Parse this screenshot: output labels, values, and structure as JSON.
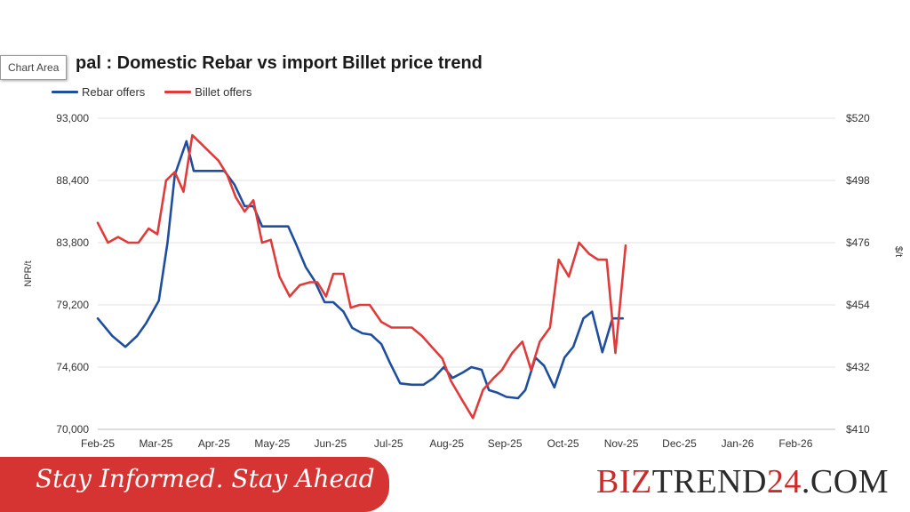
{
  "tooltip": {
    "label": "Chart Area"
  },
  "chart_data": {
    "type": "line",
    "title": "pal : Domestic Rebar vs import Billet price trend",
    "ylabel_left": "NPR/t",
    "ylabel_right": "$/t",
    "ylim_left": [
      70000,
      93000
    ],
    "ylim_right": [
      410,
      520
    ],
    "yticks_left": [
      "93,000",
      "88,400",
      "83,800",
      "79,200",
      "74,600",
      "70,000"
    ],
    "yticks_right": [
      "$520",
      "$498",
      "$476",
      "$454",
      "$432",
      "$410"
    ],
    "xticks": [
      "Feb-25",
      "Mar-25",
      "Apr-25",
      "May-25",
      "Jun-25",
      "Jul-25",
      "Aug-25",
      "Sep-25",
      "Oct-25",
      "Nov-25",
      "Dec-25",
      "Jan-26",
      "Feb-26"
    ],
    "x_range_months": [
      0,
      13.5
    ],
    "grid": true,
    "legend_position": "top-left",
    "series": [
      {
        "name": "Rebar offers",
        "axis": "left",
        "color": "#1f4e9e",
        "points": [
          [
            0,
            78200
          ],
          [
            0.5,
            76900
          ],
          [
            0.95,
            76100
          ],
          [
            1.35,
            76900
          ],
          [
            1.65,
            77800
          ],
          [
            2.1,
            79500
          ],
          [
            2.4,
            83800
          ],
          [
            2.65,
            88800
          ],
          [
            3.05,
            91300
          ],
          [
            3.3,
            89100
          ],
          [
            3.6,
            89100
          ],
          [
            4.0,
            89100
          ],
          [
            4.35,
            89100
          ],
          [
            4.7,
            88100
          ],
          [
            5.05,
            86500
          ],
          [
            5.35,
            86500
          ],
          [
            5.65,
            85000
          ],
          [
            5.95,
            85000
          ],
          [
            6.25,
            85000
          ],
          [
            6.55,
            85000
          ],
          [
            6.8,
            83800
          ],
          [
            7.15,
            82000
          ],
          [
            7.45,
            81000
          ],
          [
            7.8,
            79400
          ],
          [
            8.1,
            79400
          ],
          [
            8.45,
            78700
          ],
          [
            8.75,
            77500
          ],
          [
            9.1,
            77100
          ],
          [
            9.4,
            77000
          ],
          [
            9.75,
            76300
          ],
          [
            10.05,
            74900
          ],
          [
            10.4,
            73400
          ],
          [
            10.8,
            73300
          ],
          [
            11.2,
            73300
          ],
          [
            11.55,
            73800
          ],
          [
            11.9,
            74600
          ],
          [
            12.2,
            73800
          ],
          [
            12.55,
            74200
          ],
          [
            12.85,
            74600
          ],
          [
            13.2,
            74400
          ],
          [
            13.45,
            72900
          ],
          [
            13.75,
            72700
          ],
          [
            14.05,
            72400
          ],
          [
            14.45,
            72300
          ],
          [
            14.7,
            72900
          ],
          [
            15.05,
            75300
          ],
          [
            15.35,
            74700
          ],
          [
            15.7,
            73100
          ],
          [
            16.05,
            75300
          ],
          [
            16.35,
            76100
          ],
          [
            16.7,
            78200
          ],
          [
            17.0,
            78700
          ],
          [
            17.35,
            75700
          ],
          [
            17.7,
            78200
          ],
          [
            18.05,
            78200
          ]
        ]
      },
      {
        "name": "Billet offers",
        "axis": "right",
        "color": "#e03b3b",
        "points": [
          [
            0,
            483
          ],
          [
            0.35,
            476
          ],
          [
            0.7,
            478
          ],
          [
            1.05,
            476
          ],
          [
            1.4,
            476
          ],
          [
            1.75,
            481
          ],
          [
            2.05,
            479
          ],
          [
            2.35,
            498
          ],
          [
            2.65,
            501
          ],
          [
            2.95,
            494
          ],
          [
            3.25,
            514
          ],
          [
            3.55,
            511
          ],
          [
            3.85,
            508
          ],
          [
            4.15,
            505
          ],
          [
            4.45,
            500
          ],
          [
            4.75,
            492
          ],
          [
            5.05,
            487
          ],
          [
            5.35,
            491
          ],
          [
            5.65,
            476
          ],
          [
            5.95,
            477
          ],
          [
            6.25,
            464
          ],
          [
            6.6,
            457
          ],
          [
            6.95,
            461
          ],
          [
            7.3,
            462
          ],
          [
            7.55,
            462
          ],
          [
            7.85,
            457
          ],
          [
            8.1,
            465
          ],
          [
            8.45,
            465
          ],
          [
            8.7,
            453
          ],
          [
            9.0,
            454
          ],
          [
            9.35,
            454
          ],
          [
            9.75,
            448
          ],
          [
            10.1,
            446
          ],
          [
            10.45,
            446
          ],
          [
            10.8,
            446
          ],
          [
            11.15,
            443
          ],
          [
            11.5,
            439
          ],
          [
            11.85,
            435
          ],
          [
            12.15,
            427
          ],
          [
            12.55,
            420
          ],
          [
            12.9,
            414
          ],
          [
            13.25,
            424
          ],
          [
            13.6,
            428
          ],
          [
            13.9,
            431
          ],
          [
            14.25,
            437
          ],
          [
            14.6,
            441
          ],
          [
            14.9,
            431
          ],
          [
            15.2,
            441
          ],
          [
            15.55,
            446
          ],
          [
            15.85,
            470
          ],
          [
            16.2,
            464
          ],
          [
            16.55,
            476
          ],
          [
            16.9,
            472
          ],
          [
            17.2,
            470
          ],
          [
            17.5,
            470
          ],
          [
            17.8,
            437
          ],
          [
            18.15,
            475
          ]
        ]
      }
    ]
  },
  "banner": {
    "slogan": "Stay Informed. Stay Ahead",
    "brand_red": "BIZ",
    "brand_dark": "TREND",
    "brand_red2": "24",
    "brand_dark2": ".COM"
  }
}
